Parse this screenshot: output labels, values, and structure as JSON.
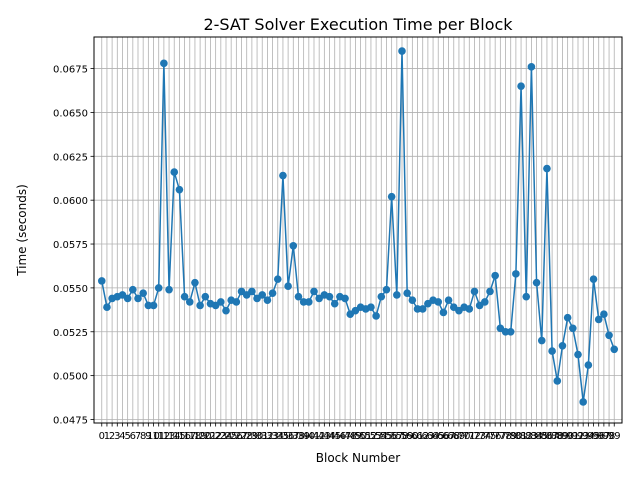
{
  "chart_data": {
    "type": "line",
    "title": "2-SAT Solver Execution Time per Block",
    "xlabel": "Block Number",
    "ylabel": "Time (seconds)",
    "grid": true,
    "ylim": [
      0.0473,
      0.0693
    ],
    "xlim": [
      -1.5,
      100.5
    ],
    "yticks": [
      0.0475,
      0.05,
      0.0525,
      0.055,
      0.0575,
      0.06,
      0.0625,
      0.065,
      0.0675
    ],
    "ytick_labels": [
      "0.0475",
      "0.0500",
      "0.0525",
      "0.0550",
      "0.0575",
      "0.0600",
      "0.0625",
      "0.0650",
      "0.0675"
    ],
    "x": [
      0,
      1,
      2,
      3,
      4,
      5,
      6,
      7,
      8,
      9,
      10,
      11,
      12,
      13,
      14,
      15,
      16,
      17,
      18,
      19,
      20,
      21,
      22,
      23,
      24,
      25,
      26,
      27,
      28,
      29,
      30,
      31,
      32,
      33,
      34,
      35,
      36,
      37,
      38,
      39,
      40,
      41,
      42,
      43,
      44,
      45,
      46,
      47,
      48,
      49,
      50,
      51,
      52,
      53,
      54,
      55,
      56,
      57,
      58,
      59,
      60,
      61,
      62,
      63,
      64,
      65,
      66,
      67,
      68,
      69,
      70,
      71,
      72,
      73,
      74,
      75,
      76,
      77,
      78,
      79,
      80,
      81,
      82,
      83,
      84,
      85,
      86,
      87,
      88,
      89,
      90,
      91,
      92,
      93,
      94,
      95,
      96,
      97,
      98,
      99
    ],
    "values": [
      0.0554,
      0.0539,
      0.0544,
      0.0545,
      0.0546,
      0.0544,
      0.0549,
      0.0544,
      0.0547,
      0.054,
      0.054,
      0.055,
      0.0678,
      0.0549,
      0.0616,
      0.0606,
      0.0545,
      0.0542,
      0.0553,
      0.054,
      0.0545,
      0.0541,
      0.054,
      0.0542,
      0.0537,
      0.0543,
      0.0542,
      0.0548,
      0.0546,
      0.0548,
      0.0544,
      0.0546,
      0.0543,
      0.0547,
      0.0555,
      0.0614,
      0.0551,
      0.0574,
      0.0545,
      0.0542,
      0.0542,
      0.0548,
      0.0544,
      0.0546,
      0.0545,
      0.0541,
      0.0545,
      0.0544,
      0.0535,
      0.0537,
      0.0539,
      0.0538,
      0.0539,
      0.0534,
      0.0545,
      0.0549,
      0.0602,
      0.0546,
      0.0685,
      0.0547,
      0.0543,
      0.0538,
      0.0538,
      0.0541,
      0.0543,
      0.0542,
      0.0536,
      0.0543,
      0.0539,
      0.0537,
      0.0539,
      0.0538,
      0.0548,
      0.054,
      0.0542,
      0.0548,
      0.0557,
      0.0527,
      0.0525,
      0.0525,
      0.0558,
      0.0665,
      0.0545,
      0.0676,
      0.0553,
      0.052,
      0.0618,
      0.0514,
      0.0497,
      0.0517,
      0.0533,
      0.0527,
      0.0512,
      0.0485,
      0.0506,
      0.0555,
      0.0532,
      0.0535,
      0.0523,
      0.0515
    ],
    "series_color": "#1f77b4",
    "grid_color": "#b0b0b0"
  }
}
